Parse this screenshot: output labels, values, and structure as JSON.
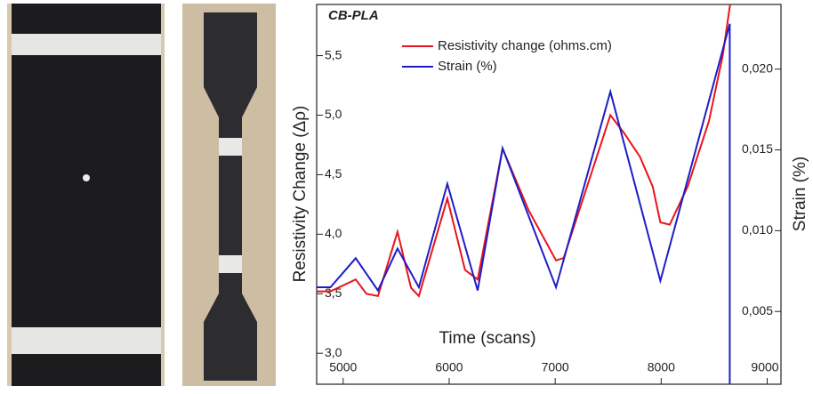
{
  "chart_data": {
    "type": "line",
    "annotations": [
      "CB-PLA",
      "Time (scans)"
    ],
    "ylabel": "Resistivity Change (Δρ)",
    "y2label": "Strain (%)",
    "xlim": [
      4750,
      9130
    ],
    "xticks": [
      5000,
      6000,
      7000,
      8000,
      9000
    ],
    "ylim": [
      2.74,
      5.93
    ],
    "yticks": [
      {
        "value": 3.0,
        "label": "3,0"
      },
      {
        "value": 3.5,
        "label": "3,5"
      },
      {
        "value": 4.0,
        "label": "4,0"
      },
      {
        "value": 4.5,
        "label": "4,5"
      },
      {
        "value": 5.0,
        "label": "5,0"
      },
      {
        "value": 5.5,
        "label": "5,5"
      }
    ],
    "y2lim": [
      0.0005,
      0.024
    ],
    "y2ticks": [
      {
        "value": 0.005,
        "label": "0,005"
      },
      {
        "value": 0.01,
        "label": "0,010"
      },
      {
        "value": 0.015,
        "label": "0,015"
      },
      {
        "value": 0.02,
        "label": "0,020"
      }
    ],
    "series": [
      {
        "name": "Resistivity change (ohms.cm)",
        "color": "#e8141c",
        "x": [
          4750,
          4880,
          5118,
          5220,
          5328,
          5513,
          5640,
          5714,
          5983,
          6150,
          6269,
          6504,
          6750,
          7008,
          7080,
          7521,
          7650,
          7800,
          7920,
          7992,
          8080,
          8250,
          8450,
          8580,
          8650
        ],
        "values": [
          3.52,
          3.52,
          3.62,
          3.5,
          3.48,
          4.02,
          3.55,
          3.48,
          4.3,
          3.7,
          3.62,
          4.72,
          4.2,
          3.78,
          3.8,
          5.0,
          4.85,
          4.65,
          4.4,
          4.1,
          4.08,
          4.4,
          4.95,
          5.5,
          5.93
        ]
      },
      {
        "name": "Strain (%)",
        "color": "#1d1dc8",
        "axis": "y2",
        "x": [
          4750,
          4880,
          5118,
          5328,
          5513,
          5714,
          5983,
          6269,
          6504,
          7008,
          7521,
          7992,
          8647,
          8647
        ],
        "values": [
          0.0065,
          0.0065,
          0.0083,
          0.0063,
          0.0089,
          0.0065,
          0.0129,
          0.0063,
          0.0151,
          0.0065,
          0.0186,
          0.0069,
          0.0228,
          0.0005
        ]
      }
    ]
  }
}
